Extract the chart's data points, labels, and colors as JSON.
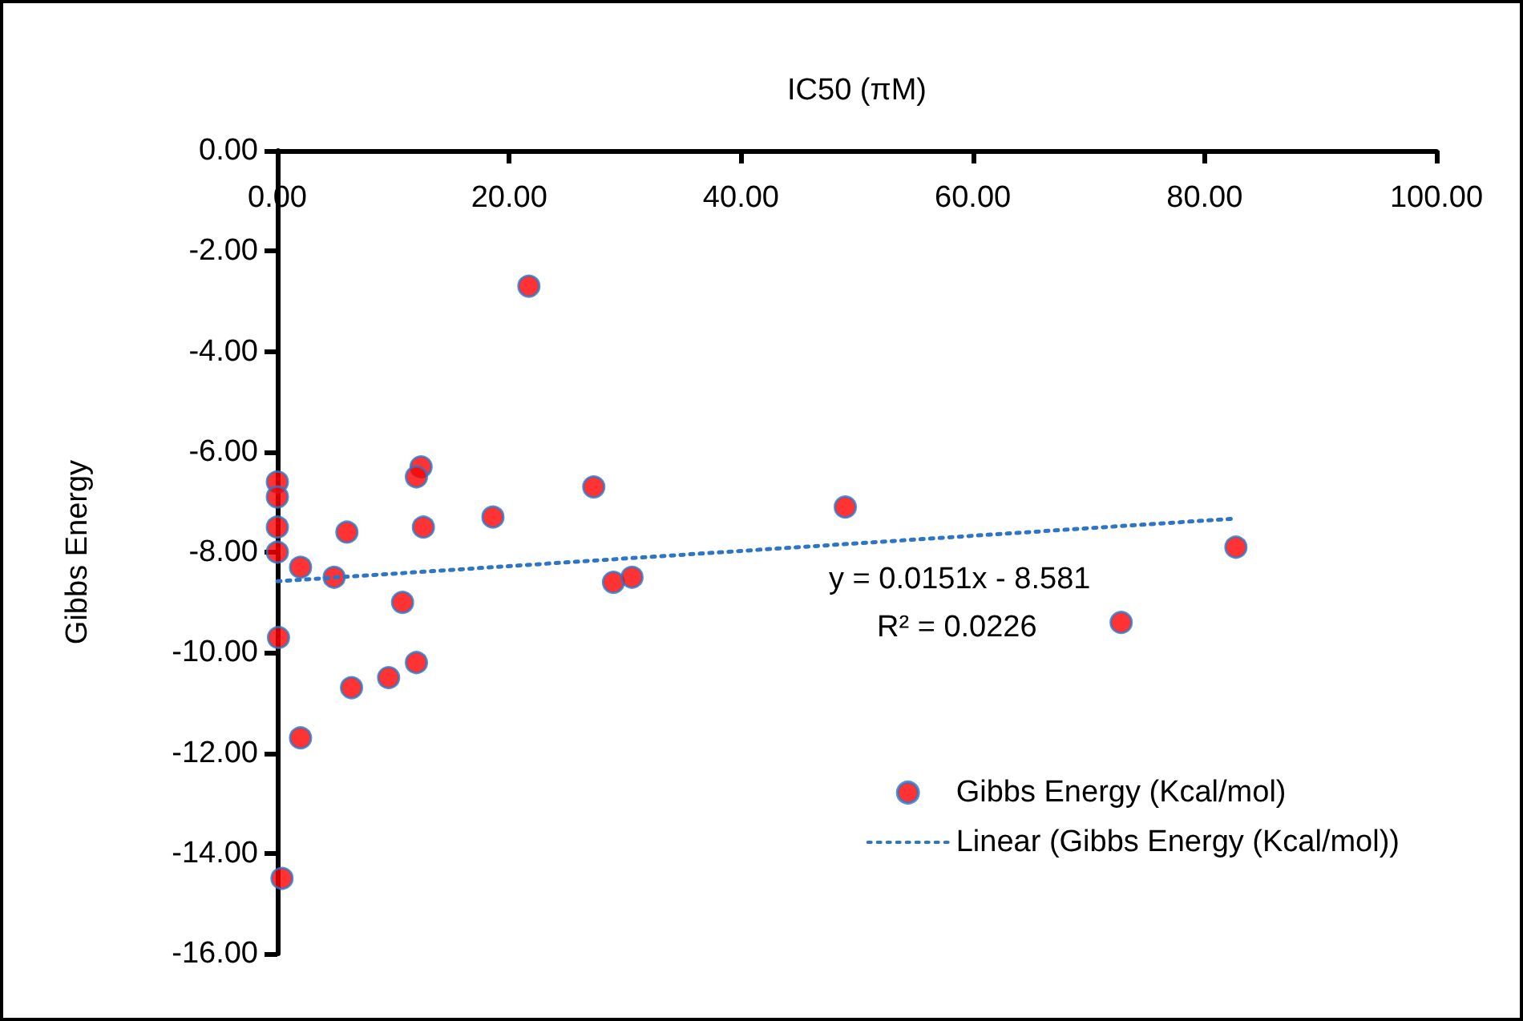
{
  "chart_data": {
    "type": "scatter",
    "xlabel": "IC50 (πM)",
    "ylabel": "Gibbs Energy",
    "xlim": [
      0,
      100
    ],
    "xticks": [
      {
        "value": 0,
        "label": "0.00"
      },
      {
        "value": 20,
        "label": "20.00"
      },
      {
        "value": 40,
        "label": "40.00"
      },
      {
        "value": 60,
        "label": "60.00"
      },
      {
        "value": 80,
        "label": "80.00"
      },
      {
        "value": 100,
        "label": "100.00"
      }
    ],
    "ylim": [
      -16,
      0
    ],
    "yticks": [
      {
        "value": 0,
        "label": "0.00"
      },
      {
        "value": -2,
        "label": "-2.00"
      },
      {
        "value": -4,
        "label": "-4.00"
      },
      {
        "value": -6,
        "label": "-6.00"
      },
      {
        "value": -8,
        "label": "-8.00"
      },
      {
        "value": -10,
        "label": "-10.00"
      },
      {
        "value": -12,
        "label": "-12.00"
      },
      {
        "value": -14,
        "label": "-14.00"
      },
      {
        "value": -16,
        "label": "-16.00"
      }
    ],
    "grid": false,
    "legend": "bottom right",
    "marker": "circle",
    "annotations": [
      "y = 0.0151x - 8.581",
      "R² = 0.0226"
    ],
    "series": [
      {
        "name": "Gibbs Energy (Kcal/mol)",
        "color": "#ff0000",
        "x": [
          0,
          0,
          0,
          0,
          2.0,
          4.9,
          6.0,
          12.4,
          12.0,
          12.6,
          18.6,
          21.7,
          27.3,
          29.0,
          30.6,
          49.0,
          10.8,
          0.1,
          6.4,
          9.6,
          12.0,
          2.0,
          0.4,
          72.8,
          82.7
        ],
        "values": [
          -6.6,
          -6.9,
          -7.5,
          -8.0,
          -8.3,
          -8.5,
          -7.6,
          -6.3,
          -6.5,
          -7.5,
          -7.3,
          -2.7,
          -6.7,
          -8.6,
          -8.5,
          -7.1,
          -9.0,
          -9.7,
          -10.7,
          -10.5,
          -10.2,
          -11.7,
          -14.5,
          -9.4,
          -7.9
        ]
      },
      {
        "name": "Linear (Gibbs Energy (Kcal/mol))",
        "type": "line",
        "color": "#2e75c6",
        "line_style": "dotted",
        "marker": "none",
        "x": [
          0,
          82.7
        ],
        "values": [
          -8.58,
          -7.33
        ]
      }
    ]
  }
}
